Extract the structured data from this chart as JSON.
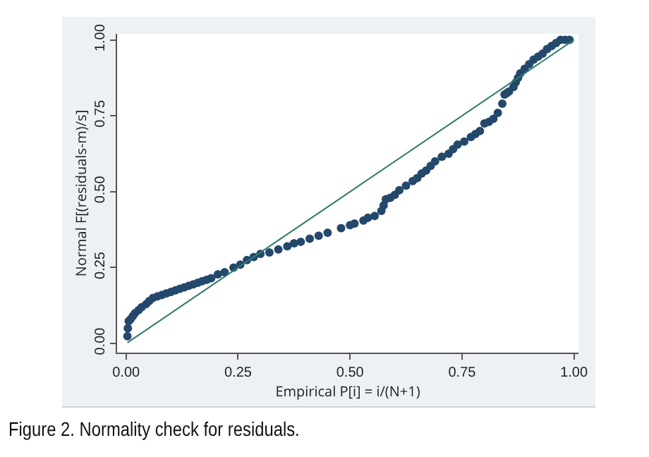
{
  "chart_data": {
    "type": "scatter",
    "xlabel": "Empirical P[i] = i/(N+1)",
    "ylabel": "Normal F[(residuals-m)/s]",
    "annotations": [
      "Figure 2. Normality check for residuals."
    ],
    "xlim": [
      -0.02,
      1.01
    ],
    "ylim": [
      -0.03,
      1.02
    ],
    "xticks": [
      {
        "value": 0,
        "label": "0.00"
      },
      {
        "value": 0.25,
        "label": "0.25"
      },
      {
        "value": 0.5,
        "label": "0.50"
      },
      {
        "value": 0.75,
        "label": "0.75"
      },
      {
        "value": 1,
        "label": "1.00"
      }
    ],
    "yticks": [
      {
        "value": 0,
        "label": "0.00"
      },
      {
        "value": 0.25,
        "label": "0.25"
      },
      {
        "value": 0.5,
        "label": "0.50"
      },
      {
        "value": 0.75,
        "label": "0.75"
      },
      {
        "value": 1,
        "label": "1.00"
      }
    ],
    "grid": false,
    "series": [
      {
        "color": "#24486b",
        "marker": "circle",
        "x": [
          0.003,
          0.004,
          0.006,
          0.01,
          0.015,
          0.02,
          0.028,
          0.035,
          0.045,
          0.052,
          0.06,
          0.07,
          0.08,
          0.09,
          0.1,
          0.11,
          0.12,
          0.13,
          0.14,
          0.15,
          0.16,
          0.17,
          0.18,
          0.19,
          0.205,
          0.22,
          0.24,
          0.255,
          0.27,
          0.285,
          0.3,
          0.32,
          0.34,
          0.36,
          0.375,
          0.39,
          0.41,
          0.43,
          0.45,
          0.48,
          0.5,
          0.51,
          0.53,
          0.54,
          0.555,
          0.57,
          0.575,
          0.58,
          0.59,
          0.6,
          0.61,
          0.625,
          0.64,
          0.65,
          0.66,
          0.67,
          0.68,
          0.69,
          0.705,
          0.72,
          0.73,
          0.74,
          0.755,
          0.77,
          0.78,
          0.79,
          0.8,
          0.81,
          0.82,
          0.83,
          0.84,
          0.845,
          0.85,
          0.855,
          0.865,
          0.87,
          0.875,
          0.88,
          0.89,
          0.9,
          0.91,
          0.92,
          0.93,
          0.94,
          0.95,
          0.96,
          0.97,
          0.98,
          0.99
        ],
        "values": [
          0.024,
          0.05,
          0.074,
          0.08,
          0.09,
          0.1,
          0.11,
          0.12,
          0.13,
          0.14,
          0.15,
          0.155,
          0.16,
          0.165,
          0.17,
          0.175,
          0.18,
          0.185,
          0.19,
          0.195,
          0.2,
          0.205,
          0.21,
          0.215,
          0.228,
          0.235,
          0.25,
          0.26,
          0.275,
          0.285,
          0.295,
          0.3,
          0.31,
          0.32,
          0.33,
          0.335,
          0.345,
          0.355,
          0.365,
          0.38,
          0.39,
          0.395,
          0.405,
          0.414,
          0.42,
          0.437,
          0.455,
          0.475,
          0.48,
          0.49,
          0.505,
          0.52,
          0.535,
          0.545,
          0.56,
          0.57,
          0.585,
          0.6,
          0.615,
          0.625,
          0.64,
          0.655,
          0.665,
          0.68,
          0.69,
          0.7,
          0.725,
          0.73,
          0.74,
          0.76,
          0.79,
          0.82,
          0.825,
          0.83,
          0.845,
          0.86,
          0.875,
          0.89,
          0.905,
          0.92,
          0.935,
          0.945,
          0.955,
          0.97,
          0.98,
          0.99,
          1.0,
          1.0,
          1.0
        ]
      },
      {
        "type": "line",
        "color": "#2e7b6c",
        "x": [
          0.003,
          1.0
        ],
        "values": [
          0.003,
          1.0
        ],
        "line_style": "solid",
        "marker": "none"
      }
    ]
  }
}
